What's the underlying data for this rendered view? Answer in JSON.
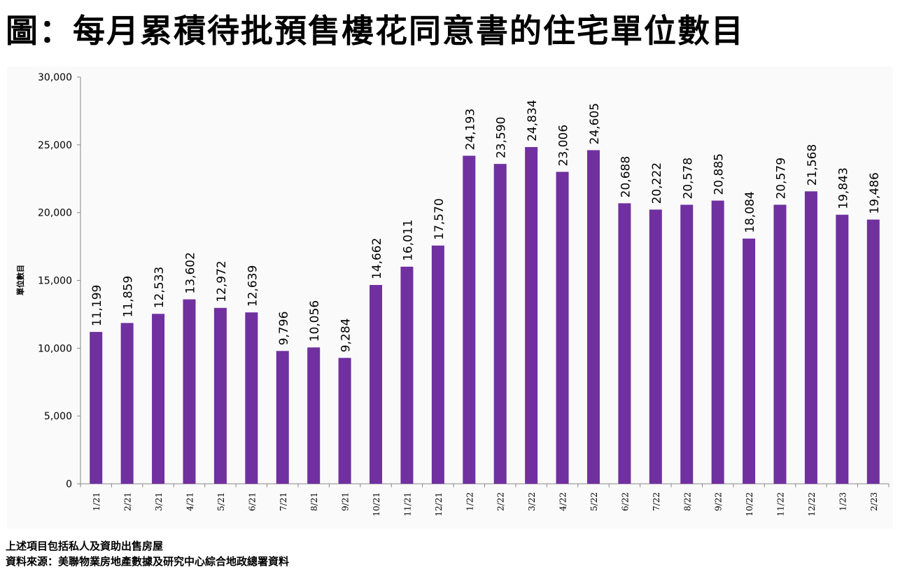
{
  "title": "圖：每月累積待批預售樓花同意書的住宅單位數目",
  "notes": [
    "上述項目包括私人及資助出售房屋",
    "資料來源：美聯物業房地產數據及研究中心綜合地政總署資料"
  ],
  "chart_data": {
    "type": "bar",
    "title": "圖：每月累積待批預售樓花同意書的住宅單位數目",
    "xlabel": "",
    "ylabel": "單位數目",
    "ylim": [
      0,
      30000
    ],
    "yticks": [
      0,
      5000,
      10000,
      15000,
      20000,
      25000,
      30000
    ],
    "ytick_labels": [
      "0",
      "5,000",
      "10,000",
      "15,000",
      "20,000",
      "25,000",
      "30,000"
    ],
    "grid": false,
    "bar_color": "#7030A0",
    "categories": [
      "1/21",
      "2/21",
      "3/21",
      "4/21",
      "5/21",
      "6/21",
      "7/21",
      "8/21",
      "9/21",
      "10/21",
      "11/21",
      "12/21",
      "1/22",
      "2/22",
      "3/22",
      "4/22",
      "5/22",
      "6/22",
      "7/22",
      "8/22",
      "9/22",
      "10/22",
      "11/22",
      "12/22",
      "1/23",
      "2/23"
    ],
    "values": [
      11199,
      11859,
      12533,
      13602,
      12972,
      12639,
      9796,
      10056,
      9284,
      14662,
      16011,
      17570,
      24193,
      23590,
      24834,
      23006,
      24605,
      20688,
      20222,
      20578,
      20885,
      18084,
      20579,
      21568,
      19843,
      19486
    ],
    "data_labels": [
      "11,199",
      "11,859",
      "12,533",
      "13,602",
      "12,972",
      "12,639",
      "9,796",
      "10,056",
      "9,284",
      "14,662",
      "16,011",
      "17,570",
      "24,193",
      "23,590",
      "24,834",
      "23,006",
      "24,605",
      "20,688",
      "20,222",
      "20,578",
      "20,885",
      "18,084",
      "20,579",
      "21,568",
      "19,843",
      "19,486"
    ]
  }
}
